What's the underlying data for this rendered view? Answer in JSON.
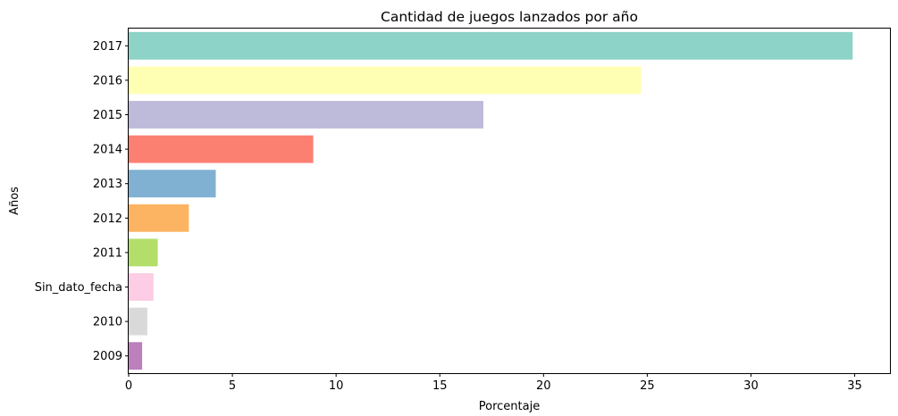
{
  "chart_data": {
    "type": "bar",
    "orientation": "horizontal",
    "title": "Cantidad de juegos lanzados por año",
    "xlabel": "Porcentaje",
    "ylabel": "Años",
    "categories": [
      "2017",
      "2016",
      "2015",
      "2014",
      "2013",
      "2012",
      "2011",
      "Sin_dato_fecha",
      "2010",
      "2009"
    ],
    "values": [
      34.9,
      24.7,
      17.1,
      8.9,
      4.2,
      2.9,
      1.4,
      1.2,
      0.9,
      0.65
    ],
    "colors": [
      "#8dd3c7",
      "#ffffb3",
      "#bebada",
      "#fb8072",
      "#80b1d3",
      "#fdb462",
      "#b3de69",
      "#fccde5",
      "#d9d9d9",
      "#bc80bd"
    ],
    "xlim": [
      0,
      36.7
    ],
    "xticks": [
      0,
      5,
      10,
      15,
      20,
      25,
      30,
      35
    ],
    "grid": false,
    "legend": "none"
  }
}
